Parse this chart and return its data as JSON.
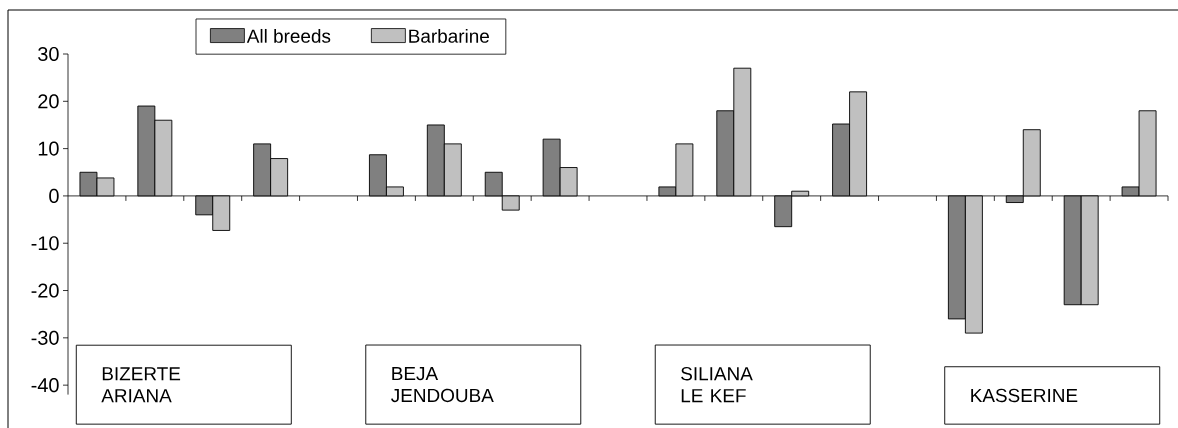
{
  "chart_data": {
    "type": "bar",
    "categories": [
      null,
      null,
      null,
      null,
      null,
      null,
      null,
      null,
      null,
      null,
      null,
      null,
      null,
      null,
      null,
      null,
      null,
      null,
      null
    ],
    "series": [
      {
        "name": "All breeds",
        "color": "#808080",
        "values": [
          5,
          19,
          -4,
          11,
          null,
          8.7,
          15,
          5,
          12,
          null,
          1.9,
          18,
          -6.5,
          15.2,
          null,
          -26,
          -1.4,
          -23,
          1.9
        ]
      },
      {
        "name": "Barbarine",
        "color": "#c0c0c0",
        "values": [
          3.8,
          16,
          -7.3,
          7.9,
          null,
          1.9,
          11,
          -3,
          6,
          null,
          11,
          27,
          1,
          22,
          null,
          -29,
          14,
          -23,
          18
        ]
      }
    ],
    "ylim": [
      -42,
      30
    ],
    "yticks": [
      -40,
      -30,
      -20,
      -10,
      0,
      10,
      20,
      30
    ],
    "legend": "top left",
    "tick_labels": "y",
    "annotations": [
      "BIZERTE ARIANA",
      "BEJA JENDOUBA",
      "SILIANA LE KEF",
      "KASSERINE"
    ]
  }
}
